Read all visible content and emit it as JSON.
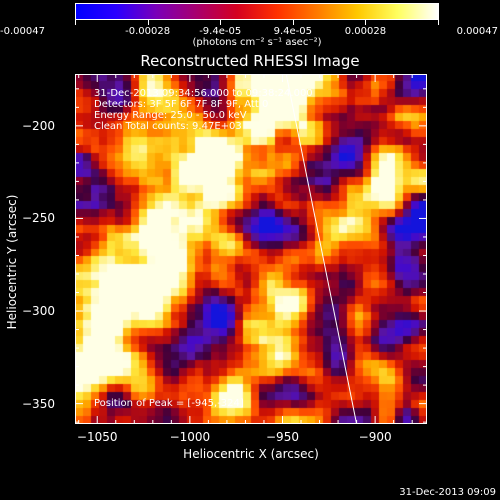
{
  "colorbar": {
    "ticks": [
      "-0.00047",
      "-0.00028",
      "-9.4e-05",
      "9.4e-05",
      "0.00028",
      "0.00047"
    ],
    "unit": "(photons cm⁻² s⁻¹ asec⁻²)",
    "range": [
      -0.00047,
      0.00047
    ]
  },
  "annotations": {
    "time_range": "31-Dec-2013 09:34:56.000 to 09:38:24.000",
    "detectors": "Detectors: 3F 5F 6F 7F 8F 9F, Att 0",
    "energy": "Energy Range: 25.0 - 50.0 keV",
    "clean": "Clean     Total counts: 9.47E+03",
    "peak": "Position of Peak = [-945,-324]"
  },
  "timestamp": "31-Dec-2013 09:09",
  "chart_data": {
    "type": "heatmap",
    "title": "Reconstructed RHESSI Image",
    "xlabel": "Heliocentric X (arcsec)",
    "ylabel": "Heliocentric Y (arcsec)",
    "xlim": [
      -1062,
      -872
    ],
    "ylim": [
      -361,
      -172
    ],
    "xticks": [
      "-1050",
      "-1000",
      "-950",
      "-900"
    ],
    "yticks": [
      "-200",
      "-250",
      "-300",
      "-350"
    ],
    "colormap": "blue-purple-red-yellow-white",
    "peak": [
      -945,
      -324
    ],
    "limb_line": [
      [
        -948,
        -172
      ],
      [
        -910,
        -361
      ]
    ]
  }
}
